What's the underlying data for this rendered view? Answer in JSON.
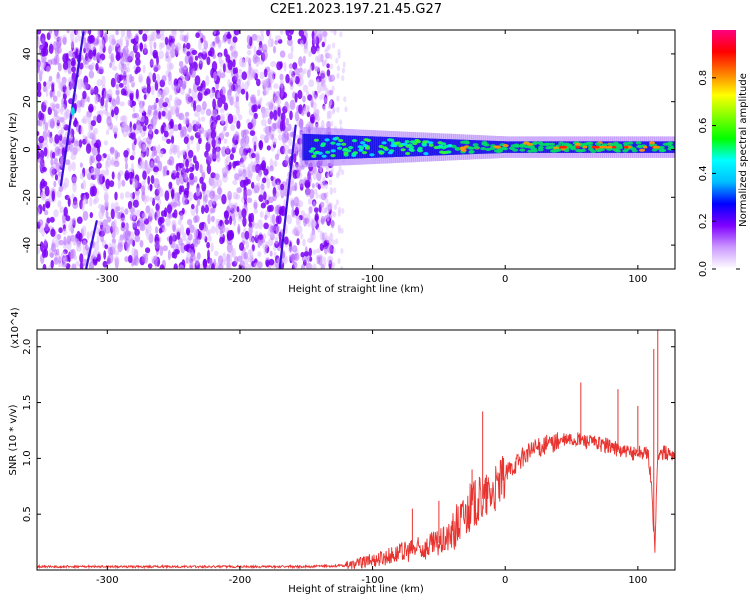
{
  "title": "C2E1.2023.197.21.45.G27",
  "chart_data": [
    {
      "type": "heatmap",
      "xlabel": "Height of straight line (km)",
      "ylabel": "Frequency (Hz)",
      "xlim": [
        -353,
        128
      ],
      "ylim": [
        -50,
        50
      ],
      "xticks": [
        -300,
        -200,
        -100,
        0,
        100
      ],
      "yticks": [
        -40,
        -20,
        0,
        20,
        40
      ],
      "colorbar": {
        "label": "Normalized spectral amplitude",
        "range": [
          0,
          1
        ],
        "ticks": [
          "0.0",
          "0.2",
          "0.4",
          "0.6",
          "0.8"
        ],
        "colormap": [
          "#ffffff",
          "#cc99ff",
          "#7f00ff",
          "#0000ff",
          "#00bfff",
          "#00ffff",
          "#00ff00",
          "#7fff00",
          "#ffff00",
          "#ff8000",
          "#ff0000",
          "#ff0080"
        ]
      },
      "features": {
        "noise_region_km": [
          -353,
          -140
        ],
        "signal_start_km": -155,
        "signal_center_hz": 1,
        "signal_halfwidth_hz_near_start": 7,
        "signal_halfwidth_hz_far": 3,
        "streaks": [
          {
            "x_start_km": -335,
            "y_start_hz": -15,
            "x_end_km": -318,
            "y_end_hz": 49
          },
          {
            "x_start_km": -316,
            "y_start_hz": -50,
            "x_end_km": -308,
            "y_end_hz": -30
          },
          {
            "x_start_km": -170,
            "y_start_hz": -50,
            "x_end_km": -158,
            "y_end_hz": 10
          }
        ]
      }
    },
    {
      "type": "line",
      "xlabel": "Height of straight line (km)",
      "ylabel": "SNR (10 * v/v)",
      "multiplier": "(x10^4)",
      "xlim": [
        -353,
        128
      ],
      "ylim": [
        0,
        2.15
      ],
      "xticks": [
        -300,
        -200,
        -100,
        0,
        100
      ],
      "yticks": [
        0.5,
        1.0,
        1.5,
        2.0
      ],
      "color": "#e8332f",
      "series": [
        {
          "x": [
            -353,
            -300,
            -250,
            -200,
            -150,
            -120,
            -110,
            -100,
            -90,
            -80,
            -70,
            -60,
            -50,
            -45,
            -40,
            -35,
            -30,
            -25,
            -20,
            -15,
            -10,
            -5,
            0,
            5,
            10,
            15,
            20,
            30,
            40,
            50,
            60,
            70,
            80,
            85,
            90,
            95,
            100,
            105,
            108,
            110,
            112,
            113,
            114,
            115,
            116,
            118,
            120,
            128
          ],
          "values": [
            0.03,
            0.03,
            0.03,
            0.03,
            0.03,
            0.04,
            0.06,
            0.09,
            0.12,
            0.15,
            0.18,
            0.2,
            0.24,
            0.27,
            0.32,
            0.42,
            0.5,
            0.58,
            0.62,
            0.65,
            0.7,
            0.75,
            0.85,
            0.92,
            0.98,
            1.03,
            1.07,
            1.12,
            1.15,
            1.17,
            1.16,
            1.13,
            1.11,
            1.08,
            1.06,
            1.04,
            1.06,
            1.05,
            1.02,
            0.8,
            0.35,
            0.2,
            0.7,
            1.0,
            1.05,
            1.04,
            1.05,
            1.04
          ]
        }
      ],
      "spikes": [
        {
          "x": -17,
          "y": 1.42
        },
        {
          "x": -25,
          "y": 0.9
        },
        {
          "x": -50,
          "y": 0.62
        },
        {
          "x": -70,
          "y": 0.55
        },
        {
          "x": 57,
          "y": 1.68
        },
        {
          "x": 85,
          "y": 1.62
        },
        {
          "x": 100,
          "y": 1.47
        },
        {
          "x": 112,
          "y": 1.98
        },
        {
          "x": 115,
          "y": 2.15
        }
      ]
    }
  ]
}
